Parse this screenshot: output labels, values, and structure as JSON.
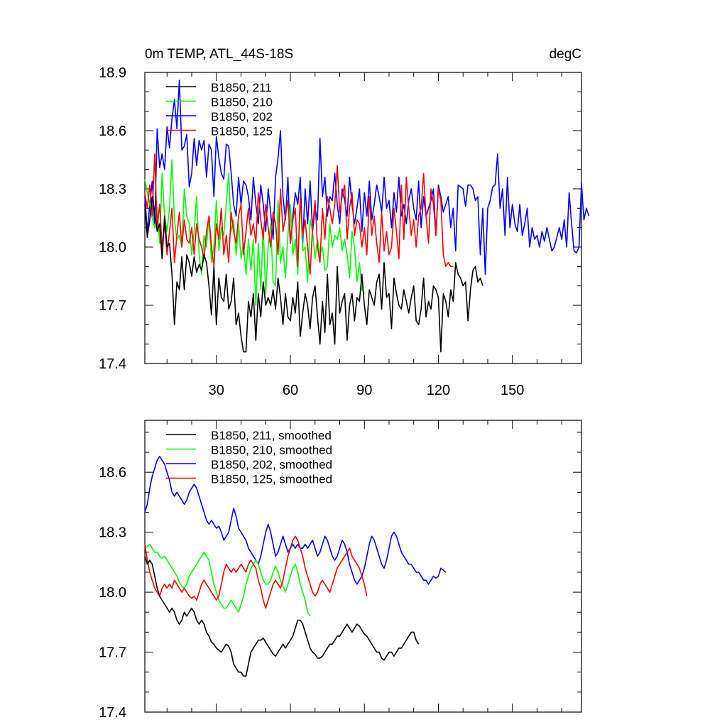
{
  "chart_data": [
    {
      "type": "line",
      "title": "0m TEMP, ATL_44S-18S",
      "units_label": "degC",
      "xlim": [
        1,
        178
      ],
      "ylim": [
        17.4,
        18.9
      ],
      "y_ticks": [
        17.4,
        17.7,
        18.0,
        18.3,
        18.6,
        18.9
      ],
      "y_tick_labels": [
        "17.4",
        "17.7",
        "18.0",
        "18.3",
        "18.6",
        "18.9"
      ],
      "x_ticks": [
        30,
        60,
        90,
        120,
        150
      ],
      "x_tick_labels": [
        "30",
        "60",
        "90",
        "120",
        "150"
      ],
      "legend_position": "top-left",
      "series": [
        {
          "name": "B1850, 211",
          "color": "#000000",
          "values": [
            18.22,
            18.05,
            18.14,
            18.26,
            18.18,
            18.08,
            18.12,
            17.94,
            18.16,
            18.0,
            18.02,
            17.86,
            17.6,
            17.82,
            17.78,
            17.95,
            17.78,
            17.96,
            17.92,
            17.85,
            17.95,
            17.87,
            17.91,
            17.88,
            17.96,
            17.92,
            17.8,
            17.65,
            17.9,
            17.6,
            17.84,
            17.74,
            17.72,
            17.86,
            17.68,
            17.72,
            17.84,
            17.6,
            17.66,
            17.54,
            17.46,
            17.46,
            17.72,
            17.64,
            17.76,
            17.52,
            17.76,
            17.64,
            17.82,
            17.7,
            17.74,
            17.7,
            17.78,
            17.68,
            17.84,
            17.74,
            17.6,
            17.76,
            17.64,
            17.62,
            17.74,
            17.66,
            17.82,
            17.54,
            17.66,
            17.76,
            17.7,
            17.58,
            17.74,
            17.8,
            17.64,
            17.5,
            17.72,
            17.56,
            17.86,
            17.6,
            17.66,
            17.5,
            17.9,
            17.66,
            17.72,
            17.76,
            17.52,
            17.7,
            17.76,
            17.62,
            17.74,
            17.72,
            17.86,
            17.7,
            17.6,
            17.78,
            17.74,
            17.7,
            17.82,
            17.86,
            17.68,
            17.92,
            17.74,
            17.76,
            17.58,
            17.84,
            17.76,
            17.7,
            17.68,
            17.78,
            17.72,
            17.66,
            17.74,
            17.8,
            17.62,
            17.6,
            17.68,
            17.84,
            17.64,
            17.72,
            17.68,
            17.8,
            17.78,
            17.74,
            17.46,
            17.76,
            17.72,
            17.64,
            17.78,
            17.72,
            17.92,
            17.86,
            17.84,
            17.8,
            17.82,
            17.62,
            17.78,
            17.88,
            17.9,
            17.82,
            17.84,
            17.8
          ]
        },
        {
          "name": "B1850, 210",
          "color": "#00ff00",
          "values": [
            18.35,
            18.28,
            18.22,
            18.15,
            18.1,
            18.2,
            18.02,
            18.38,
            18.16,
            18.08,
            18.2,
            18.45,
            18.14,
            18.04,
            18.06,
            18.0,
            18.3,
            18.16,
            18.12,
            17.96,
            18.08,
            18.26,
            17.96,
            17.86,
            18.06,
            18.0,
            18.16,
            17.92,
            18.0,
            18.24,
            17.98,
            18.1,
            18.06,
            18.22,
            18.38,
            18.08,
            18.14,
            17.96,
            18.12,
            17.94,
            18.02,
            17.86,
            18.04,
            17.88,
            18.04,
            17.7,
            18.02,
            17.78,
            18.1,
            17.76,
            18.0,
            18.12,
            17.82,
            17.8,
            18.24,
            17.92,
            18.0,
            17.84,
            18.06,
            18.22,
            17.96,
            18.04,
            17.86,
            18.26,
            17.98,
            18.0,
            17.82,
            18.14,
            18.08,
            17.94,
            18.04,
            17.96,
            18.0,
            17.88,
            17.9,
            18.12,
            18.0,
            18.06,
            18.04,
            18.1,
            17.98,
            18.04,
            17.96,
            17.84,
            18.08,
            18.0,
            17.82,
            17.92,
            17.78,
            17.76
          ]
        },
        {
          "name": "B1850, 202",
          "color": "#0000ff",
          "values": [
            18.26,
            18.08,
            18.22,
            18.34,
            18.1,
            18.61,
            18.41,
            18.48,
            18.4,
            18.62,
            18.51,
            18.66,
            18.76,
            18.61,
            18.86,
            18.5,
            18.52,
            18.58,
            18.31,
            18.38,
            18.56,
            18.42,
            18.55,
            18.5,
            18.55,
            18.36,
            18.53,
            18.5,
            18.26,
            18.57,
            18.46,
            18.38,
            18.35,
            18.53,
            18.52,
            18.38,
            18.22,
            18.16,
            18.36,
            18.22,
            18.34,
            18.32,
            18.26,
            18.14,
            18.36,
            18.22,
            18.12,
            18.32,
            18.22,
            18.08,
            18.3,
            18.18,
            18.04,
            18.36,
            18.46,
            18.6,
            18.26,
            18.14,
            18.36,
            18.02,
            18.16,
            18.28,
            18.22,
            18.36,
            18.02,
            18.3,
            18.12,
            18.34,
            18.08,
            18.2,
            18.14,
            18.56,
            18.26,
            18.36,
            18.16,
            18.26,
            18.24,
            18.38,
            18.22,
            18.12,
            18.3,
            18.24,
            18.16,
            18.36,
            18.22,
            18.12,
            18.2,
            18.3,
            18.08,
            18.28,
            18.16,
            18.34,
            18.14,
            18.22,
            18.32,
            18.26,
            18.18,
            18.36,
            18.2,
            18.24,
            18.1,
            18.28,
            18.18,
            18.36,
            18.16,
            18.22,
            18.12,
            18.24,
            18.3,
            18.2,
            18.14,
            18.34,
            18.1,
            18.26,
            18.16,
            18.2,
            18.24,
            18.3,
            18.06,
            18.32,
            18.26,
            18.18,
            18.22,
            18.26,
            18.1,
            18.2,
            17.98,
            18.32,
            18.31,
            18.3,
            18.21,
            18.32,
            18.32,
            18.3,
            18.24,
            18.26,
            17.96,
            18.2,
            17.86,
            18.2,
            18.24,
            18.31,
            18.32,
            18.48,
            18.2,
            18.3,
            18.06,
            18.36,
            18.1,
            18.22,
            18.12,
            18.08,
            18.22,
            18.06,
            18.12,
            18.2,
            18.0,
            18.1,
            18.04,
            18.06,
            18.0,
            18.08,
            18.03,
            18.1,
            18.04,
            17.98,
            18.0,
            18.05,
            18.1,
            18.04,
            18.14,
            18.0,
            18.28,
            18.12,
            17.98,
            17.97,
            18.0,
            18.33,
            18.14,
            18.2,
            18.16
          ]
        },
        {
          "name": "B1850, 125",
          "color": "#ff0000",
          "values": [
            18.28,
            18.2,
            18.32,
            18.16,
            18.48,
            18.1,
            18.22,
            18.0,
            18.12,
            17.96,
            18.08,
            18.2,
            17.92,
            18.06,
            18.18,
            18.0,
            18.14,
            18.04,
            18.02,
            18.1,
            17.96,
            18.12,
            18.04,
            18.0,
            17.94,
            18.08,
            18.16,
            18.0,
            17.9,
            18.12,
            18.04,
            18.2,
            17.96,
            18.06,
            17.92,
            18.18,
            18.08,
            18.02,
            18.16,
            18.22,
            17.96,
            18.08,
            18.2,
            18.06,
            18.12,
            18.02,
            18.28,
            18.14,
            18.04,
            18.22,
            18.1,
            18.0,
            18.18,
            18.12,
            17.96,
            18.3,
            18.08,
            18.16,
            18.24,
            18.02,
            18.14,
            18.2,
            17.9,
            18.26,
            18.06,
            18.14,
            18.0,
            17.86,
            18.1,
            18.24,
            18.0,
            17.92,
            18.2,
            18.04,
            18.26,
            18.2,
            18.12,
            18.22,
            18.42,
            18.18,
            18.26,
            18.32,
            18.04,
            18.2,
            18.28,
            18.06,
            18.14,
            18.12,
            18.0,
            18.1,
            17.96,
            18.26,
            18.06,
            18.16,
            18.02,
            17.92,
            18.18,
            17.98,
            18.08,
            17.96,
            18.0,
            18.2,
            18.08,
            17.94,
            18.32,
            18.04,
            18.36,
            18.2,
            18.06,
            18.14,
            18.0,
            18.16,
            18.2,
            18.38,
            18.16,
            18.02,
            18.3,
            18.22,
            18.06,
            18.3,
            18.24,
            17.96,
            17.9,
            17.92,
            17.9,
            17.9
          ]
        }
      ]
    },
    {
      "type": "line",
      "title": "",
      "xlim": [
        1,
        178
      ],
      "ylim": [
        17.4,
        18.86
      ],
      "y_ticks": [
        17.4,
        17.7,
        18.0,
        18.3,
        18.6
      ],
      "y_tick_labels": [
        "17.4",
        "17.7",
        "18.0",
        "18.3",
        "18.6"
      ],
      "x_ticks": [
        30,
        60,
        90,
        120,
        150
      ],
      "x_tick_labels": [
        "",
        "",
        "",
        "",
        ""
      ],
      "legend_position": "top-left",
      "series": [
        {
          "name": "B1850, 211, smoothed",
          "color": "#000000",
          "values": [
            18.18,
            18.14,
            18.16,
            18.14,
            18.08,
            18.02,
            17.98,
            17.96,
            17.94,
            17.92,
            17.9,
            17.92,
            17.9,
            17.86,
            17.84,
            17.86,
            17.9,
            17.88,
            17.9,
            17.92,
            17.9,
            17.86,
            17.84,
            17.86,
            17.84,
            17.8,
            17.78,
            17.75,
            17.74,
            17.72,
            17.71,
            17.7,
            17.72,
            17.74,
            17.73,
            17.7,
            17.64,
            17.62,
            17.6,
            17.6,
            17.58,
            17.58,
            17.64,
            17.7,
            17.72,
            17.74,
            17.76,
            17.76,
            17.77,
            17.75,
            17.73,
            17.71,
            17.69,
            17.68,
            17.7,
            17.72,
            17.74,
            17.72,
            17.74,
            17.76,
            17.78,
            17.82,
            17.86,
            17.86,
            17.84,
            17.8,
            17.76,
            17.72,
            17.7,
            17.69,
            17.67,
            17.67,
            17.68,
            17.7,
            17.72,
            17.74,
            17.74,
            17.76,
            17.78,
            17.78,
            17.8,
            17.82,
            17.84,
            17.82,
            17.8,
            17.82,
            17.84,
            17.83,
            17.81,
            17.79,
            17.78,
            17.76,
            17.74,
            17.72,
            17.7,
            17.7,
            17.67,
            17.66,
            17.68,
            17.7,
            17.7,
            17.68,
            17.7,
            17.72,
            17.72,
            17.74,
            17.76,
            17.78,
            17.8,
            17.8,
            17.76,
            17.74
          ]
        },
        {
          "name": "B1850, 210, smoothed",
          "color": "#00ff00",
          "values": [
            18.22,
            18.23,
            18.24,
            18.22,
            18.2,
            18.2,
            18.18,
            18.17,
            18.18,
            18.16,
            18.14,
            18.12,
            18.1,
            18.08,
            18.05,
            18.03,
            18.02,
            18.04,
            18.08,
            18.1,
            18.12,
            18.14,
            18.16,
            18.18,
            18.2,
            18.18,
            18.16,
            18.1,
            18.04,
            18.0,
            17.96,
            17.94,
            17.92,
            17.92,
            17.94,
            17.96,
            17.94,
            17.92,
            17.9,
            17.94,
            17.98,
            18.04,
            18.08,
            18.12,
            18.14,
            18.16,
            18.14,
            18.1,
            18.06,
            18.04,
            18.04,
            18.06,
            18.1,
            18.13,
            18.1,
            18.06,
            18.03,
            18.0,
            18.04,
            18.08,
            18.12,
            18.14,
            18.1,
            18.04,
            18.0,
            17.96,
            17.9,
            17.88
          ]
        },
        {
          "name": "B1850, 202, smoothed",
          "color": "#0000ff",
          "values": [
            18.4,
            18.44,
            18.52,
            18.58,
            18.62,
            18.66,
            18.68,
            18.66,
            18.64,
            18.6,
            18.56,
            18.5,
            18.48,
            18.5,
            18.48,
            18.46,
            18.44,
            18.46,
            18.5,
            18.52,
            18.54,
            18.52,
            18.48,
            18.44,
            18.4,
            18.36,
            18.34,
            18.36,
            18.34,
            18.32,
            18.33,
            18.3,
            18.26,
            18.28,
            18.3,
            18.36,
            18.42,
            18.38,
            18.32,
            18.3,
            18.28,
            18.26,
            18.22,
            18.2,
            18.18,
            18.16,
            18.14,
            18.18,
            18.24,
            18.3,
            18.34,
            18.3,
            18.24,
            18.18,
            18.2,
            18.24,
            18.28,
            18.24,
            18.2,
            18.22,
            18.24,
            18.22,
            18.24,
            18.22,
            18.22,
            18.24,
            18.22,
            18.24,
            18.26,
            18.22,
            18.18,
            18.2,
            18.24,
            18.28,
            18.26,
            18.22,
            18.18,
            18.16,
            18.18,
            18.22,
            18.26,
            18.24,
            18.2,
            18.14,
            18.1,
            18.06,
            18.04,
            18.06,
            18.08,
            18.12,
            18.18,
            18.24,
            18.28,
            18.26,
            18.22,
            18.18,
            18.14,
            18.12,
            18.16,
            18.22,
            18.28,
            18.3,
            18.28,
            18.24,
            18.2,
            18.18,
            18.16,
            18.14,
            18.14,
            18.12,
            18.1,
            18.1,
            18.08,
            18.06,
            18.06,
            18.04,
            18.06,
            18.08,
            18.07,
            18.08,
            18.12,
            18.11,
            18.1
          ]
        },
        {
          "name": "B1850, 125, smoothed",
          "color": "#ff0000",
          "values": [
            18.24,
            18.16,
            18.1,
            18.06,
            18.02,
            18.0,
            17.98,
            18.02,
            18.04,
            18.02,
            18.04,
            18.02,
            18.06,
            18.04,
            18.02,
            18.0,
            18.02,
            18.0,
            17.98,
            17.97,
            17.98,
            17.96,
            18.0,
            18.04,
            18.06,
            18.04,
            18.02,
            18.0,
            17.98,
            17.96,
            17.98,
            18.04,
            18.1,
            18.14,
            18.12,
            18.1,
            18.12,
            18.1,
            18.12,
            18.14,
            18.12,
            18.1,
            18.14,
            18.16,
            18.14,
            18.12,
            18.06,
            18.02,
            17.96,
            17.92,
            17.96,
            18.0,
            18.04,
            18.06,
            18.04,
            18.02,
            18.06,
            18.12,
            18.18,
            18.22,
            18.26,
            18.28,
            18.26,
            18.22,
            18.18,
            18.12,
            18.08,
            18.04,
            18.0,
            17.98,
            18.0,
            18.04,
            18.06,
            18.04,
            18.02,
            18.0,
            18.04,
            18.08,
            18.12,
            18.14,
            18.16,
            18.18,
            18.2,
            18.22,
            18.18,
            18.16,
            18.14,
            18.12,
            18.08,
            18.04,
            17.98
          ]
        }
      ]
    }
  ]
}
